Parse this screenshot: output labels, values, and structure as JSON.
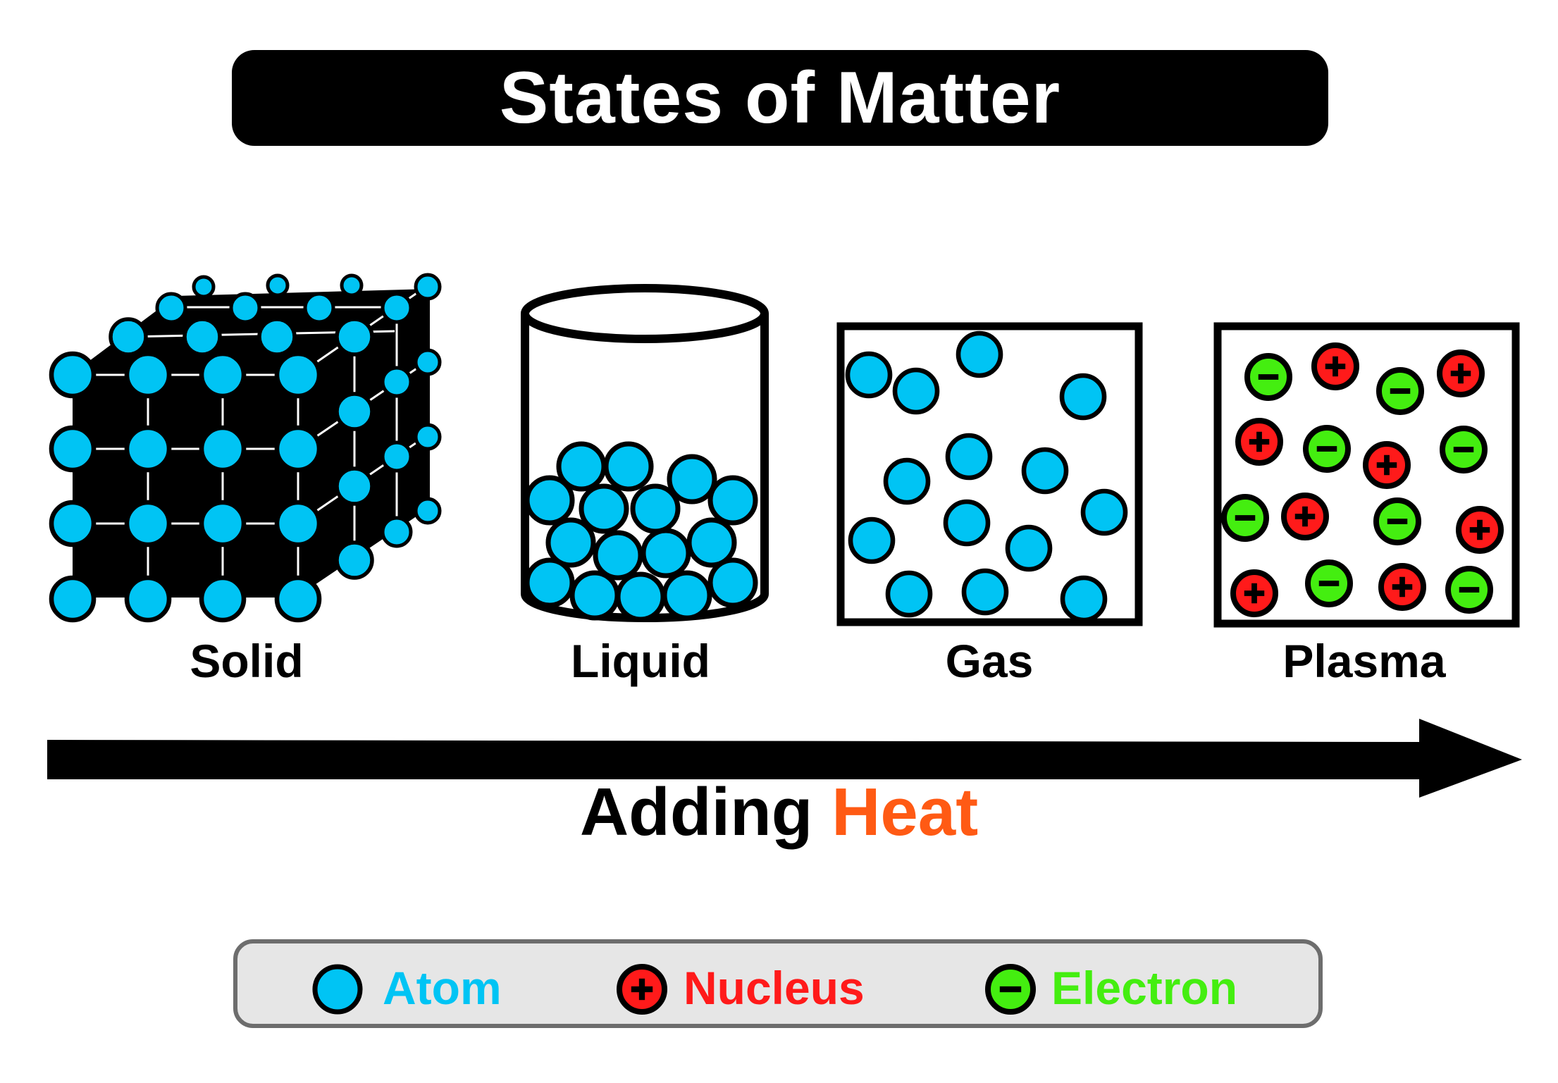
{
  "title": "States of Matter",
  "states": [
    {
      "label": "Solid"
    },
    {
      "label": "Liquid"
    },
    {
      "label": "Gas"
    },
    {
      "label": "Plasma"
    }
  ],
  "arrow_caption": {
    "word1": "Adding",
    "word2": "Heat"
  },
  "legend": {
    "atom": "Atom",
    "nucleus": "Nucleus",
    "electron": "Electron"
  },
  "colors": {
    "atom": "#00c4f4",
    "nucleus": "#ff1a1a",
    "electron": "#44ee10",
    "heat": "#ff5a14",
    "outline": "#000000"
  }
}
